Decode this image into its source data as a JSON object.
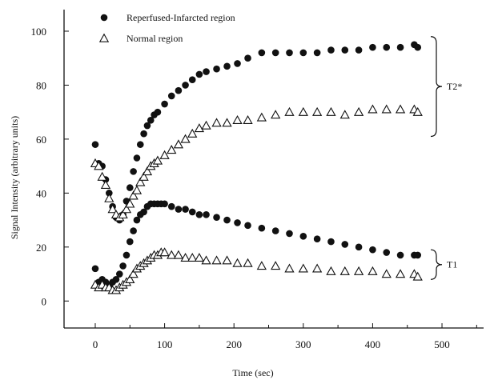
{
  "chart_data": {
    "type": "scatter",
    "xlabel": "Time (sec)",
    "ylabel": "Signal Intensity (arbitrary units)",
    "xlim": [
      -45,
      560
    ],
    "ylim": [
      -10,
      108
    ],
    "xticks": [
      0,
      100,
      200,
      300,
      400,
      500
    ],
    "yticks": [
      0,
      20,
      40,
      60,
      80,
      100
    ],
    "legend_position": "top-left",
    "grid": false,
    "legend": [
      {
        "label": "Reperfused-Infarcted region",
        "marker": "filled-circle"
      },
      {
        "label": "Normal region",
        "marker": "open-triangle"
      }
    ],
    "annotations": [
      {
        "label": "T2*",
        "y_range": [
          61,
          98
        ]
      },
      {
        "label": "T1",
        "y_range": [
          8,
          19
        ]
      }
    ],
    "series": [
      {
        "name": "Reperfused-Infarcted region",
        "group": "T2*",
        "marker": "filled-circle",
        "x": [
          0,
          5,
          10,
          15,
          20,
          25,
          30,
          35,
          40,
          45,
          50,
          55,
          60,
          65,
          70,
          75,
          80,
          85,
          90,
          100,
          110,
          120,
          130,
          140,
          150,
          160,
          175,
          190,
          205,
          220,
          240,
          260,
          280,
          300,
          320,
          340,
          360,
          380,
          400,
          420,
          440,
          460,
          465
        ],
        "y": [
          58,
          51,
          50,
          45,
          40,
          35,
          31,
          30,
          32,
          37,
          42,
          48,
          53,
          58,
          62,
          65,
          67,
          69,
          70,
          73,
          76,
          78,
          80,
          82,
          84,
          85,
          86,
          87,
          88,
          90,
          92,
          92,
          92,
          92,
          92,
          93,
          93,
          93,
          94,
          94,
          94,
          95,
          94
        ]
      },
      {
        "name": "Normal region",
        "group": "T2*",
        "marker": "open-triangle",
        "x": [
          0,
          5,
          10,
          15,
          20,
          25,
          30,
          35,
          40,
          45,
          50,
          55,
          60,
          65,
          70,
          75,
          80,
          85,
          90,
          100,
          110,
          120,
          130,
          140,
          150,
          160,
          175,
          190,
          205,
          220,
          240,
          260,
          280,
          300,
          320,
          340,
          360,
          380,
          400,
          420,
          440,
          460,
          465
        ],
        "y": [
          51,
          50,
          46,
          43,
          38,
          34,
          32,
          31,
          32,
          34,
          36,
          39,
          41,
          44,
          46,
          48,
          50,
          51,
          52,
          54,
          56,
          58,
          60,
          62,
          64,
          65,
          66,
          66,
          67,
          67,
          68,
          69,
          70,
          70,
          70,
          70,
          69,
          70,
          71,
          71,
          71,
          71,
          70
        ]
      },
      {
        "name": "Reperfused-Infarcted region",
        "group": "T1",
        "marker": "filled-circle",
        "x": [
          0,
          5,
          10,
          15,
          20,
          25,
          30,
          35,
          40,
          45,
          50,
          55,
          60,
          65,
          70,
          75,
          80,
          85,
          90,
          95,
          100,
          110,
          120,
          130,
          140,
          150,
          160,
          175,
          190,
          205,
          220,
          240,
          260,
          280,
          300,
          320,
          340,
          360,
          380,
          400,
          420,
          440,
          460,
          465
        ],
        "y": [
          12,
          7,
          8,
          7,
          6,
          7,
          8,
          10,
          13,
          17,
          22,
          26,
          30,
          32,
          33,
          35,
          36,
          36,
          36,
          36,
          36,
          35,
          34,
          34,
          33,
          32,
          32,
          31,
          30,
          29,
          28,
          27,
          26,
          25,
          24,
          23,
          22,
          21,
          20,
          19,
          18,
          17,
          17,
          17
        ]
      },
      {
        "name": "Normal region",
        "group": "T1",
        "marker": "open-triangle",
        "x": [
          0,
          5,
          10,
          15,
          20,
          25,
          30,
          35,
          40,
          45,
          50,
          55,
          60,
          65,
          70,
          75,
          80,
          85,
          90,
          95,
          100,
          110,
          120,
          130,
          140,
          150,
          160,
          175,
          190,
          205,
          220,
          240,
          260,
          280,
          300,
          320,
          340,
          360,
          380,
          400,
          420,
          440,
          460,
          465
        ],
        "y": [
          6,
          5,
          6,
          5,
          5,
          4,
          4,
          5,
          6,
          7,
          8,
          10,
          12,
          13,
          14,
          15,
          16,
          17,
          17,
          18,
          18,
          17,
          17,
          16,
          16,
          16,
          15,
          15,
          15,
          14,
          14,
          13,
          13,
          12,
          12,
          12,
          11,
          11,
          11,
          11,
          10,
          10,
          10,
          9
        ]
      }
    ]
  }
}
